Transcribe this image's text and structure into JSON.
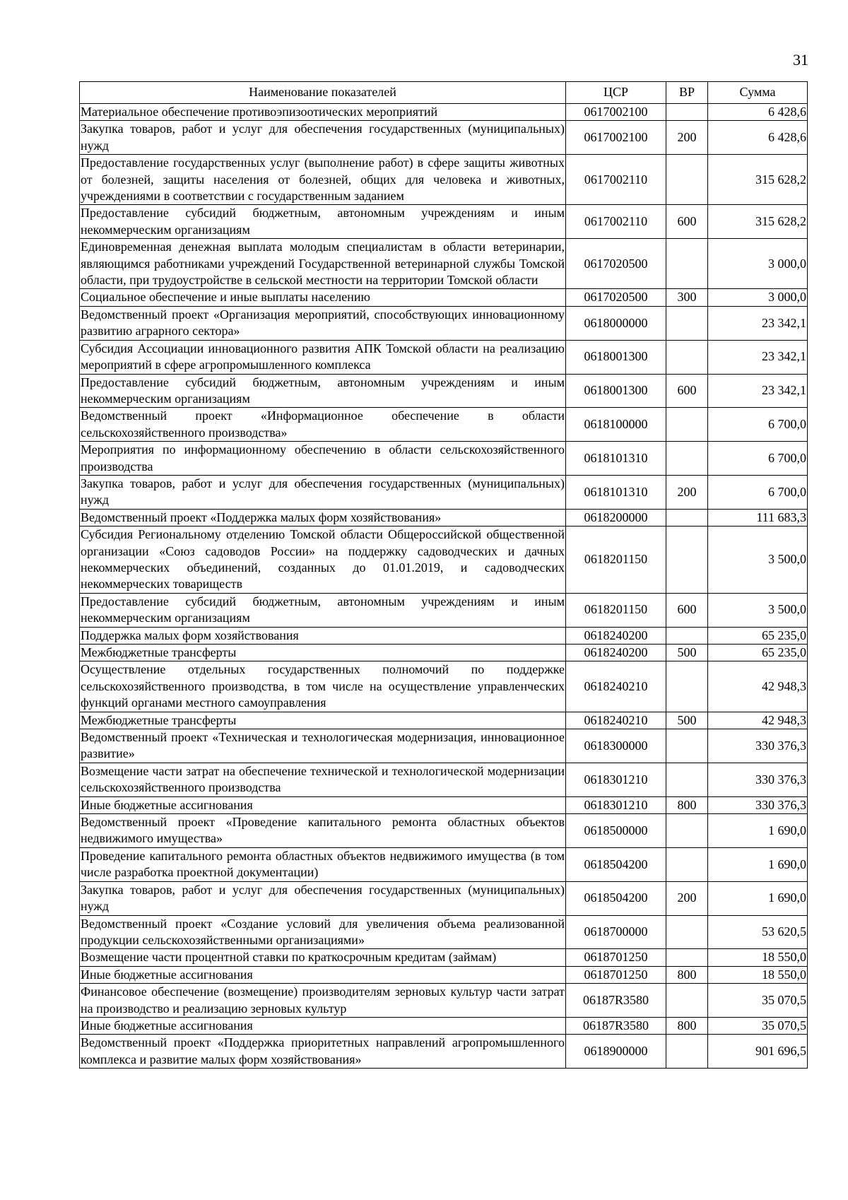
{
  "page_number": "31",
  "table": {
    "headers": {
      "name": "Наименование показателей",
      "csr": "ЦСР",
      "vr": "ВР",
      "sum": "Сумма"
    },
    "rows": [
      {
        "name": "Материальное обеспечение противоэпизоотических мероприятий",
        "csr": "0617002100",
        "vr": "",
        "sum": "6 428,6"
      },
      {
        "name": "Закупка товаров, работ и услуг для обеспечения государственных (муниципальных) нужд",
        "csr": "0617002100",
        "vr": "200",
        "sum": "6 428,6"
      },
      {
        "name": "Предоставление государственных услуг (выполнение работ) в сфере защиты животных от болезней, защиты населения от болезней, общих для человека и животных, учреждениями в соответствии с государственным заданием",
        "csr": "0617002110",
        "vr": "",
        "sum": "315 628,2"
      },
      {
        "name": "Предоставление субсидий бюджетным, автономным учреждениям и иным некоммерческим организациям",
        "csr": "0617002110",
        "vr": "600",
        "sum": "315 628,2"
      },
      {
        "name": "Единовременная денежная выплата молодым специалистам в области ветеринарии, являющимся работниками учреждений Государственной ветеринарной службы Томской области, при трудоустройстве в сельской местности на территории Томской области",
        "csr": "0617020500",
        "vr": "",
        "sum": "3 000,0"
      },
      {
        "name": "Социальное обеспечение и иные выплаты населению",
        "csr": "0617020500",
        "vr": "300",
        "sum": "3 000,0"
      },
      {
        "name": "Ведомственный проект «Организация мероприятий, способствующих инновационному развитию аграрного сектора»",
        "csr": "0618000000",
        "vr": "",
        "sum": "23 342,1"
      },
      {
        "name": "Субсидия Ассоциации инновационного развития АПК Томской области на реализацию мероприятий в сфере агропромышленного комплекса",
        "csr": "0618001300",
        "vr": "",
        "sum": "23 342,1"
      },
      {
        "name": "Предоставление субсидий бюджетным, автономным учреждениям и иным некоммерческим организациям",
        "csr": "0618001300",
        "vr": "600",
        "sum": "23 342,1"
      },
      {
        "name": "Ведомственный проект «Информационное обеспечение в области сельскохозяйственного производства»",
        "csr": "0618100000",
        "vr": "",
        "sum": "6 700,0"
      },
      {
        "name": "Мероприятия по информационному обеспечению в области сельскохозяйственного производства",
        "csr": "0618101310",
        "vr": "",
        "sum": "6 700,0"
      },
      {
        "name": "Закупка товаров, работ и услуг для обеспечения государственных (муниципальных) нужд",
        "csr": "0618101310",
        "vr": "200",
        "sum": "6 700,0"
      },
      {
        "name": "Ведомственный проект «Поддержка малых форм хозяйствования»",
        "csr": "0618200000",
        "vr": "",
        "sum": "111 683,3"
      },
      {
        "name": "Субсидия Региональному отделению Томской области Общероссийской общественной организации «Союз садоводов России» на поддержку садоводческих и дачных некоммерческих объединений, созданных до 01.01.2019, и садоводческих некоммерческих товариществ",
        "csr": "0618201150",
        "vr": "",
        "sum": "3 500,0"
      },
      {
        "name": "Предоставление субсидий бюджетным, автономным учреждениям и иным некоммерческим организациям",
        "csr": "0618201150",
        "vr": "600",
        "sum": "3 500,0"
      },
      {
        "name": "Поддержка малых форм хозяйствования",
        "csr": "0618240200",
        "vr": "",
        "sum": "65 235,0"
      },
      {
        "name": "Межбюджетные трансферты",
        "csr": "0618240200",
        "vr": "500",
        "sum": "65 235,0"
      },
      {
        "name": "Осуществление отдельных государственных полномочий по поддержке сельскохозяйственного производства, в том числе на осуществление управленческих функций органами местного самоуправления",
        "csr": "0618240210",
        "vr": "",
        "sum": "42 948,3"
      },
      {
        "name": "Межбюджетные трансферты",
        "csr": "0618240210",
        "vr": "500",
        "sum": "42 948,3"
      },
      {
        "name": "Ведомственный проект «Техническая и технологическая модернизация, инновационное развитие»",
        "csr": "0618300000",
        "vr": "",
        "sum": "330 376,3"
      },
      {
        "name": "Возмещение части затрат на обеспечение технической и технологической модернизации сельскохозяйственного производства",
        "csr": "0618301210",
        "vr": "",
        "sum": "330 376,3"
      },
      {
        "name": "Иные бюджетные ассигнования",
        "csr": "0618301210",
        "vr": "800",
        "sum": "330 376,3"
      },
      {
        "name": "Ведомственный проект «Проведение капитального ремонта областных объектов недвижимого имущества»",
        "csr": "0618500000",
        "vr": "",
        "sum": "1 690,0"
      },
      {
        "name": "Проведение капитального ремонта областных объектов недвижимого имущества (в том числе разработка проектной документации)",
        "csr": "0618504200",
        "vr": "",
        "sum": "1 690,0"
      },
      {
        "name": "Закупка товаров, работ и услуг для обеспечения государственных (муниципальных) нужд",
        "csr": "0618504200",
        "vr": "200",
        "sum": "1 690,0"
      },
      {
        "name": "Ведомственный проект «Создание условий для увеличения объема реализованной продукции сельскохозяйственными организациями»",
        "csr": "0618700000",
        "vr": "",
        "sum": "53 620,5"
      },
      {
        "name": "Возмещение части процентной ставки по краткосрочным кредитам (займам)",
        "csr": "0618701250",
        "vr": "",
        "sum": "18 550,0"
      },
      {
        "name": "Иные бюджетные ассигнования",
        "csr": "0618701250",
        "vr": "800",
        "sum": "18 550,0"
      },
      {
        "name": "Финансовое обеспечение (возмещение) производителям зерновых культур части затрат на производство и реализацию зерновых культур",
        "csr": "06187R3580",
        "vr": "",
        "sum": "35 070,5"
      },
      {
        "name": "Иные бюджетные ассигнования",
        "csr": "06187R3580",
        "vr": "800",
        "sum": "35 070,5"
      },
      {
        "name": "Ведомственный проект «Поддержка приоритетных направлений агропромышленного комплекса и развитие малых форм хозяйствования»",
        "csr": "0618900000",
        "vr": "",
        "sum": "901 696,5"
      }
    ]
  }
}
